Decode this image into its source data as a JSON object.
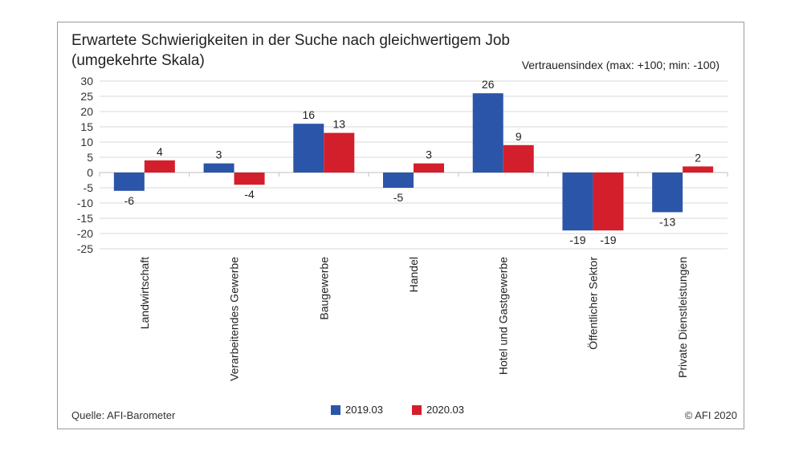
{
  "chart_data": {
    "type": "bar",
    "title_line1": "Erwartete Schwierigkeiten in der Suche nach gleichwertigem Job",
    "title_line2": "(umgekehrte Skala)",
    "subtitle": "Vertrauensindex (max: +100; min: -100)",
    "categories": [
      "Landwirtschaft",
      "Verarbeitendes Gewerbe",
      "Baugewerbe",
      "Handel",
      "Hotel und Gastgewerbe",
      "Öffentlicher Sektor",
      "Private Dienstleistungen"
    ],
    "series": [
      {
        "name": "2019.03",
        "color": "#2b55a8",
        "values": [
          -6,
          3,
          16,
          -5,
          26,
          -19,
          -13
        ]
      },
      {
        "name": "2020.03",
        "color": "#d31f2b",
        "values": [
          4,
          -4,
          13,
          3,
          9,
          -19,
          2
        ]
      }
    ],
    "ylim": [
      -25,
      30
    ],
    "yticks": [
      30,
      25,
      20,
      15,
      10,
      5,
      0,
      -5,
      -10,
      -15,
      -20,
      -25
    ],
    "grid": true,
    "legend_position": "bottom"
  },
  "source": "Quelle:  AFI-Barometer",
  "copyright": "© AFI 2020"
}
